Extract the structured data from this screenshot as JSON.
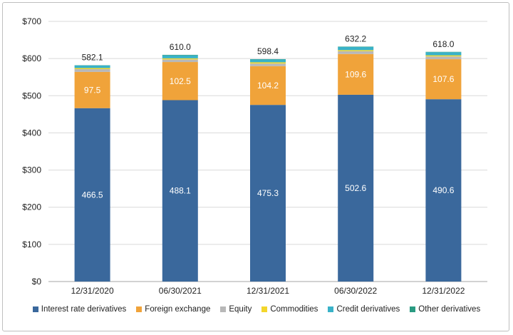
{
  "chart_data": {
    "type": "bar",
    "stacked": true,
    "categories": [
      "12/31/2020",
      "06/30/2021",
      "12/31/2021",
      "06/30/2022",
      "12/31/2022"
    ],
    "series": [
      {
        "name": "Interest rate derivatives",
        "color": "#3a689c",
        "values": [
          466.5,
          488.1,
          475.3,
          502.6,
          490.6
        ],
        "labels": [
          "466.5",
          "488.1",
          "475.3",
          "502.6",
          "490.6"
        ]
      },
      {
        "name": "Foreign exchange",
        "color": "#f0a33a",
        "values": [
          97.5,
          102.5,
          104.2,
          109.6,
          107.6
        ],
        "labels": [
          "97.5",
          "102.5",
          "104.2",
          "109.6",
          "107.6"
        ]
      },
      {
        "name": "Equity",
        "color": "#b8b8b8",
        "values": [
          7.5,
          7.0,
          7.0,
          7.5,
          7.5
        ]
      },
      {
        "name": "Commodities",
        "color": "#f3d62c",
        "values": [
          3.0,
          3.0,
          3.5,
          3.0,
          3.0
        ]
      },
      {
        "name": "Credit derivatives",
        "color": "#39b2c8",
        "values": [
          7.0,
          8.0,
          7.5,
          8.5,
          8.3
        ]
      },
      {
        "name": "Other derivatives",
        "color": "#2a9b82",
        "values": [
          0.6,
          1.4,
          0.9,
          1.0,
          1.0
        ]
      }
    ],
    "totals": [
      "582.1",
      "610.0",
      "598.4",
      "632.2",
      "618.0"
    ],
    "ylim": [
      0,
      700
    ],
    "yticks": [
      0,
      100,
      200,
      300,
      400,
      500,
      600,
      700
    ],
    "ytick_labels": [
      "$0",
      "$100",
      "$200",
      "$300",
      "$400",
      "$500",
      "$600",
      "$700"
    ],
    "grid": true,
    "legend_position": "bottom"
  }
}
